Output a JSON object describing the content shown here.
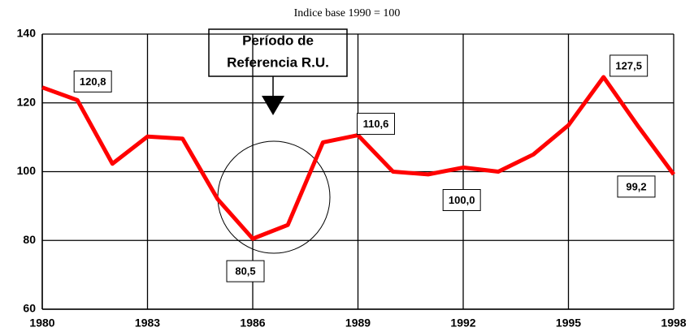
{
  "chart_data": {
    "type": "line",
    "title": "Indice base 1990 = 100",
    "annotation": [
      "Período de",
      "Referencia R.U."
    ],
    "x": [
      1980,
      1981,
      1982,
      1983,
      1984,
      1985,
      1986,
      1987,
      1988,
      1989,
      1990,
      1991,
      1992,
      1993,
      1994,
      1995,
      1996,
      1997,
      1998
    ],
    "values": [
      124.5,
      120.8,
      102.3,
      110.2,
      109.6,
      92,
      80.5,
      84.5,
      108.5,
      110.6,
      100,
      99.2,
      101.2,
      100.0,
      105,
      113.5,
      127.5,
      113,
      99.2
    ],
    "value_labels": [
      null,
      "120,8",
      null,
      null,
      null,
      null,
      "80,5",
      null,
      null,
      "110,6",
      null,
      null,
      null,
      "100,0",
      null,
      null,
      "127,5",
      null,
      "99,2"
    ],
    "color": "#ff0000",
    "xlim": [
      1980,
      1998
    ],
    "xticks": [
      1980,
      1983,
      1986,
      1989,
      1992,
      1995,
      1998
    ],
    "ylim": [
      60,
      140
    ],
    "yticks": [
      60,
      80,
      100,
      120,
      140
    ],
    "grid": true
  }
}
